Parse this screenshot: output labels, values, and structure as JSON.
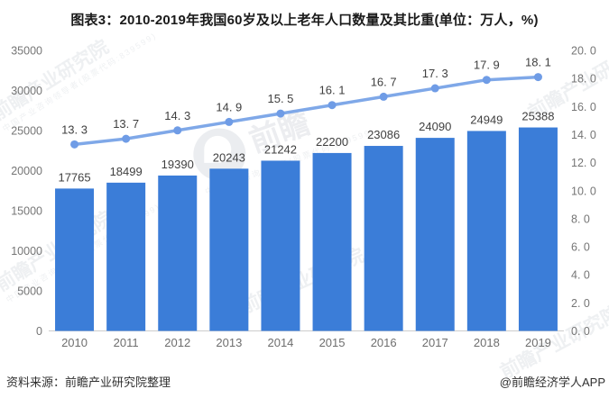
{
  "title": "图表3：2010-2019年我国60岁及以上老年人口数量及其比重(单位：万人，%)",
  "footer": {
    "source": "资料来源：前瞻产业研究院整理",
    "credit": "@前瞻经济学人APP"
  },
  "watermark": {
    "text": "前瞻产业研究院",
    "brand": "前瞻",
    "subtext": "中国产业咨询领导者(股票代码:839599)"
  },
  "colors": {
    "bar": "#3b7dd8",
    "line": "#7fa8e8",
    "point": "#6f9ce6",
    "value_label": "#3f3f3f",
    "tick_label": "#757575",
    "xtick_label": "#6e6e6e",
    "axis_line": "#cccccc"
  },
  "chart_data": {
    "type": "bar",
    "title": "图表3：2010-2019年我国60岁及以上老年人口数量及其比重(单位：万人，%)",
    "categories": [
      "2010",
      "2011",
      "2012",
      "2013",
      "2014",
      "2015",
      "2016",
      "2017",
      "2018",
      "2019"
    ],
    "series": [
      {
        "name": "60岁及以上老年人口数量(万人)",
        "type": "bar",
        "axis": "left",
        "values": [
          17765,
          18499,
          19390,
          20243,
          21242,
          22200,
          23086,
          24090,
          24949,
          25388
        ]
      },
      {
        "name": "比重(%)",
        "type": "line",
        "axis": "right",
        "values": [
          13.3,
          13.7,
          14.3,
          14.9,
          15.5,
          16.1,
          16.7,
          17.3,
          17.9,
          18.1
        ]
      }
    ],
    "left_axis": {
      "min": 0,
      "max": 35000,
      "step": 5000
    },
    "right_axis": {
      "min": 0,
      "max": 20,
      "step": 2,
      "decimals": 1
    },
    "grid": false,
    "legend": "none"
  }
}
